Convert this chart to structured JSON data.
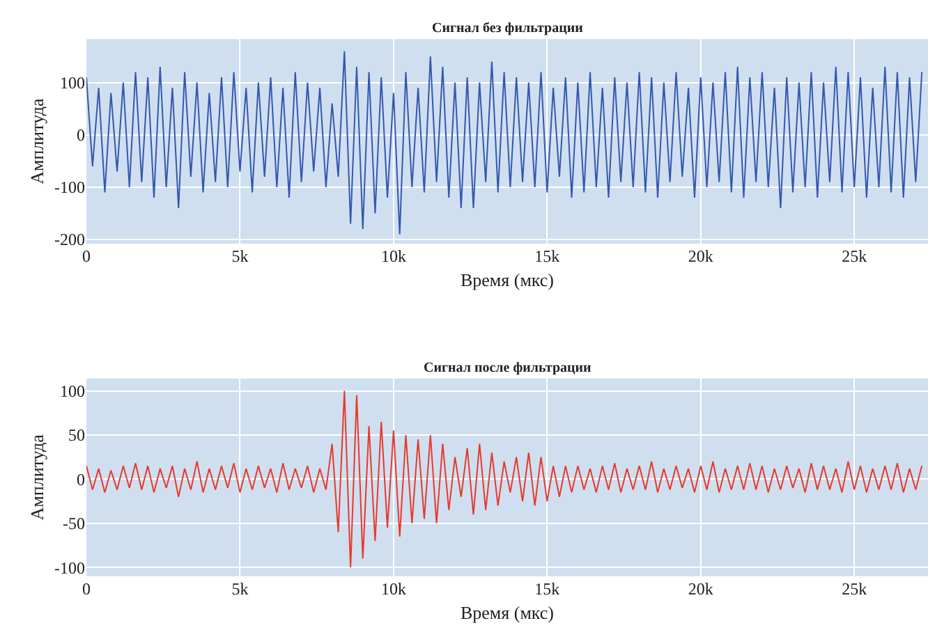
{
  "chart_data": [
    {
      "type": "line",
      "title": "Сигнал без фильтрации",
      "xlabel": "Время (мкс)",
      "ylabel": "Амплитуда",
      "x": [
        0,
        200,
        400,
        600,
        800,
        1000,
        1200,
        1400,
        1600,
        1800,
        2000,
        2200,
        2400,
        2600,
        2800,
        3000,
        3200,
        3400,
        3600,
        3800,
        4000,
        4200,
        4400,
        4600,
        4800,
        5000,
        5200,
        5400,
        5600,
        5800,
        6000,
        6200,
        6400,
        6600,
        6800,
        7000,
        7200,
        7400,
        7600,
        7800,
        8000,
        8200,
        8400,
        8600,
        8800,
        9000,
        9200,
        9400,
        9600,
        9800,
        10000,
        10200,
        10400,
        10600,
        10800,
        11000,
        11200,
        11400,
        11600,
        11800,
        12000,
        12200,
        12400,
        12600,
        12800,
        13000,
        13200,
        13400,
        13600,
        13800,
        14000,
        14200,
        14400,
        14600,
        14800,
        15000,
        15200,
        15400,
        15600,
        15800,
        16000,
        16200,
        16400,
        16600,
        16800,
        17000,
        17200,
        17400,
        17600,
        17800,
        18000,
        18200,
        18400,
        18600,
        18800,
        19000,
        19200,
        19400,
        19600,
        19800,
        20000,
        20200,
        20400,
        20600,
        20800,
        21000,
        21200,
        21400,
        21600,
        21800,
        22000,
        22200,
        22400,
        22600,
        22800,
        23000,
        23200,
        23400,
        23600,
        23800,
        24000,
        24200,
        24400,
        24600,
        24800,
        25000,
        25200,
        25400,
        25600,
        25800,
        26000,
        26200,
        26400,
        26600,
        26800,
        27000,
        27200
      ],
      "series": [
        {
          "color": "#3557b0",
          "values": [
            110,
            -60,
            90,
            -110,
            80,
            -70,
            100,
            -100,
            120,
            -90,
            110,
            -120,
            130,
            -100,
            90,
            -140,
            120,
            -80,
            100,
            -110,
            80,
            -90,
            110,
            -100,
            120,
            -70,
            90,
            -110,
            100,
            -80,
            110,
            -100,
            90,
            -120,
            120,
            -90,
            100,
            -70,
            90,
            -100,
            60,
            -80,
            160,
            -170,
            130,
            -180,
            120,
            -150,
            110,
            -120,
            80,
            -190,
            120,
            -100,
            90,
            -110,
            150,
            -90,
            130,
            -120,
            100,
            -140,
            110,
            -140,
            100,
            -90,
            140,
            -110,
            120,
            -100,
            110,
            -90,
            100,
            -100,
            120,
            -110,
            90,
            -80,
            110,
            -120,
            100,
            -110,
            120,
            -100,
            90,
            -120,
            110,
            -90,
            100,
            -100,
            120,
            -110,
            110,
            -120,
            100,
            -90,
            120,
            -80,
            90,
            -120,
            110,
            -100,
            100,
            -90,
            120,
            -110,
            130,
            -120,
            110,
            -90,
            120,
            -100,
            90,
            -140,
            110,
            -110,
            100,
            -100,
            120,
            -120,
            100,
            -90,
            130,
            -110,
            120,
            -100,
            110,
            -120,
            90,
            -100,
            130,
            -110,
            120,
            -120,
            110,
            -90,
            120
          ]
        }
      ],
      "xlim": [
        0,
        27400
      ],
      "ylim": [
        -208,
        183
      ],
      "xticks": [
        0,
        {
          "value": 5000,
          "label": "5k"
        },
        {
          "value": 10000,
          "label": "10k"
        },
        {
          "value": 15000,
          "label": "15k"
        },
        {
          "value": 20000,
          "label": "20k"
        },
        {
          "value": 25000,
          "label": "25k"
        }
      ],
      "yticks": [
        -200,
        -100,
        0,
        100
      ],
      "grid": true
    },
    {
      "type": "line",
      "title": "Сигнал после фильтрации",
      "xlabel": "Время (мкс)",
      "ylabel": "Амплитуда",
      "x": [
        0,
        200,
        400,
        600,
        800,
        1000,
        1200,
        1400,
        1600,
        1800,
        2000,
        2200,
        2400,
        2600,
        2800,
        3000,
        3200,
        3400,
        3600,
        3800,
        4000,
        4200,
        4400,
        4600,
        4800,
        5000,
        5200,
        5400,
        5600,
        5800,
        6000,
        6200,
        6400,
        6600,
        6800,
        7000,
        7200,
        7400,
        7600,
        7800,
        8000,
        8200,
        8400,
        8600,
        8800,
        9000,
        9200,
        9400,
        9600,
        9800,
        10000,
        10200,
        10400,
        10600,
        10800,
        11000,
        11200,
        11400,
        11600,
        11800,
        12000,
        12200,
        12400,
        12600,
        12800,
        13000,
        13200,
        13400,
        13600,
        13800,
        14000,
        14200,
        14400,
        14600,
        14800,
        15000,
        15200,
        15400,
        15600,
        15800,
        16000,
        16200,
        16400,
        16600,
        16800,
        17000,
        17200,
        17400,
        17600,
        17800,
        18000,
        18200,
        18400,
        18600,
        18800,
        19000,
        19200,
        19400,
        19600,
        19800,
        20000,
        20200,
        20400,
        20600,
        20800,
        21000,
        21200,
        21400,
        21600,
        21800,
        22000,
        22200,
        22400,
        22600,
        22800,
        23000,
        23200,
        23400,
        23600,
        23800,
        24000,
        24200,
        24400,
        24600,
        24800,
        25000,
        25200,
        25400,
        25600,
        25800,
        26000,
        26200,
        26400,
        26600,
        26800,
        27000,
        27200
      ],
      "series": [
        {
          "color": "#e8392a",
          "values": [
            15,
            -12,
            12,
            -15,
            10,
            -12,
            15,
            -10,
            18,
            -12,
            15,
            -15,
            12,
            -10,
            15,
            -20,
            12,
            -12,
            20,
            -15,
            12,
            -12,
            15,
            -10,
            18,
            -15,
            12,
            -12,
            15,
            -10,
            12,
            -15,
            18,
            -12,
            12,
            -10,
            15,
            -15,
            12,
            -12,
            40,
            -60,
            100,
            -100,
            95,
            -90,
            60,
            -70,
            65,
            -55,
            55,
            -65,
            50,
            -50,
            45,
            -45,
            50,
            -50,
            40,
            -35,
            25,
            -20,
            35,
            -40,
            40,
            -35,
            30,
            -30,
            20,
            -15,
            25,
            -25,
            30,
            -30,
            25,
            -25,
            15,
            -20,
            15,
            -15,
            15,
            -12,
            12,
            -15,
            15,
            -12,
            18,
            -15,
            12,
            -12,
            15,
            -12,
            20,
            -15,
            12,
            -12,
            15,
            -10,
            12,
            -15,
            15,
            -12,
            20,
            -15,
            12,
            -12,
            15,
            -12,
            18,
            -12,
            15,
            -15,
            12,
            -12,
            15,
            -10,
            12,
            -15,
            18,
            -12,
            15,
            -12,
            12,
            -15,
            20,
            -12,
            15,
            -15,
            12,
            -12,
            15,
            -12,
            18,
            -15,
            12,
            -12,
            15
          ]
        }
      ],
      "xlim": [
        0,
        27400
      ],
      "ylim": [
        -110,
        114
      ],
      "xticks": [
        0,
        {
          "value": 5000,
          "label": "5k"
        },
        {
          "value": 10000,
          "label": "10k"
        },
        {
          "value": 15000,
          "label": "15k"
        },
        {
          "value": 20000,
          "label": "20k"
        },
        {
          "value": 25000,
          "label": "25k"
        }
      ],
      "yticks": [
        -100,
        -50,
        0,
        50,
        100
      ],
      "grid": true
    }
  ]
}
